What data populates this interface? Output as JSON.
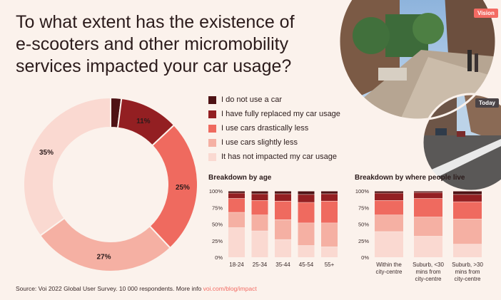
{
  "title_lines": [
    "To what extent has the existence of",
    "e-scooters and other micromobility",
    "services impacted your car usage?"
  ],
  "photo_tags": {
    "vision": "Vision",
    "today": "Today"
  },
  "colors": {
    "no_car": "#4e1214",
    "fully_replaced": "#931f22",
    "drastically_less": "#ef6a5f",
    "slightly_less": "#f5b0a3",
    "not_impacted": "#fad9d1"
  },
  "legend": [
    {
      "label": "I do not use a car",
      "color": "#4e1214"
    },
    {
      "label": "I have fully replaced my car usage",
      "color": "#931f22"
    },
    {
      "label": "I use cars drastically less",
      "color": "#ef6a5f"
    },
    {
      "label": "I use cars slightly less",
      "color": "#f5b0a3"
    },
    {
      "label": "It has not impacted my car usage",
      "color": "#fad9d1"
    }
  ],
  "panel_titles": {
    "age": "Breakdown by age",
    "where": "Breakdown by where people live"
  },
  "source": {
    "text": "Source: Voi 2022 Global User Survey. 10 000 respondents. More info ",
    "link": "voi.com/blog/impact"
  },
  "chart_data": [
    {
      "type": "pie",
      "subtype": "donut",
      "labels": [
        "I do not use a car",
        "I have fully replaced my car usage",
        "I use cars drastically less",
        "I use cars slightly less",
        "It has not impacted my car usage"
      ],
      "values": [
        2,
        11,
        25,
        27,
        35
      ],
      "data_labels": [
        "",
        "11%",
        "25%",
        "27%",
        "35%"
      ]
    },
    {
      "type": "bar",
      "subtype": "stacked-100",
      "categories": [
        "18-24",
        "25-34",
        "35-44",
        "45-54",
        "55+"
      ],
      "yticks": [
        "0%",
        "25%",
        "50%",
        "75%",
        "100%"
      ],
      "ylim": [
        0,
        100
      ],
      "series": [
        {
          "name": "It has not impacted my car usage",
          "values": [
            45,
            40,
            27,
            18,
            16
          ]
        },
        {
          "name": "I use cars slightly less",
          "values": [
            23,
            24,
            30,
            34,
            36
          ]
        },
        {
          "name": "I use cars drastically less",
          "values": [
            21,
            22,
            28,
            31,
            33
          ]
        },
        {
          "name": "I have fully replaced my car usage",
          "values": [
            8,
            10,
            11,
            12,
            11
          ]
        },
        {
          "name": "I do not use a car",
          "values": [
            3,
            4,
            4,
            5,
            4
          ]
        }
      ]
    },
    {
      "type": "bar",
      "subtype": "stacked-100",
      "categories": [
        [
          "Within the",
          "city-centre"
        ],
        [
          "Suburb, <30",
          "mins from",
          "city-centre"
        ],
        [
          "Suburb, >30",
          "mins from",
          "city-centre"
        ]
      ],
      "yticks": [
        "0%",
        "25%",
        "50%",
        "75%",
        "100%"
      ],
      "ylim": [
        0,
        100
      ],
      "series": [
        {
          "name": "It has not impacted my car usage",
          "values": [
            39,
            32,
            20
          ]
        },
        {
          "name": "I use cars slightly less",
          "values": [
            25,
            29,
            38
          ]
        },
        {
          "name": "I use cars drastically less",
          "values": [
            22,
            28,
            26
          ]
        },
        {
          "name": "I have fully replaced my car usage",
          "values": [
            11,
            9,
            11
          ]
        },
        {
          "name": "I do not use a car",
          "values": [
            3,
            2,
            5
          ]
        }
      ]
    }
  ]
}
